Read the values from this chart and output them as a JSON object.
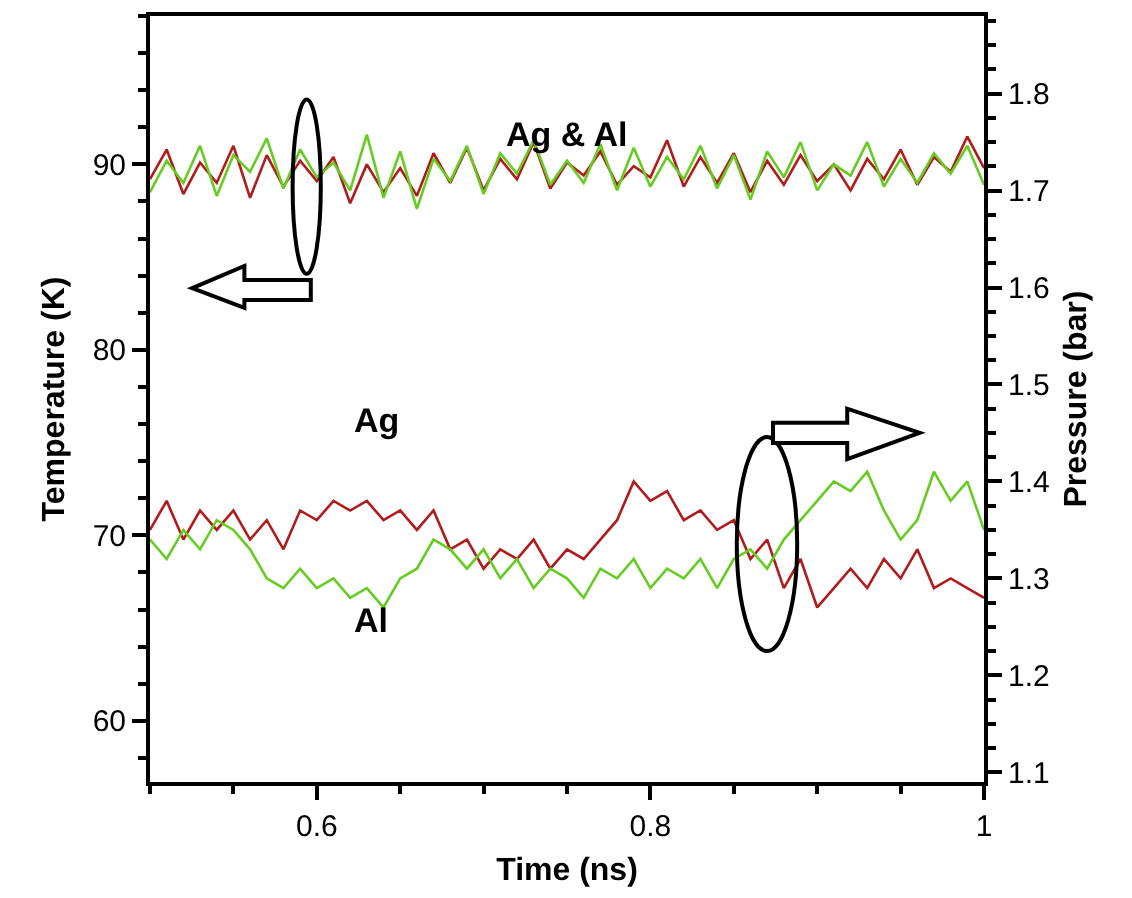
{
  "chart_data": {
    "type": "line",
    "xlabel": "Time (ns)",
    "ylabel": "Temperature (K)",
    "y2label": "Pressure (bar)",
    "x": [
      0.5,
      0.51,
      0.52,
      0.53,
      0.54,
      0.55,
      0.56,
      0.57,
      0.58,
      0.59,
      0.6,
      0.61,
      0.62,
      0.63,
      0.64,
      0.65,
      0.66,
      0.67,
      0.68,
      0.69,
      0.7,
      0.71,
      0.72,
      0.73,
      0.74,
      0.75,
      0.76,
      0.77,
      0.78,
      0.79,
      0.8,
      0.81,
      0.82,
      0.83,
      0.84,
      0.85,
      0.86,
      0.87,
      0.88,
      0.89,
      0.9,
      0.91,
      0.92,
      0.93,
      0.94,
      0.95,
      0.96,
      0.97,
      0.98,
      0.99,
      1.0
    ],
    "series": [
      {
        "color": "#b01c1c",
        "values": [
          89.2,
          90.8,
          88.4,
          90.1,
          89.0,
          91.0,
          88.2,
          90.5,
          88.8,
          90.2,
          89.1,
          90.4,
          87.9,
          90.0,
          88.5,
          89.8,
          88.3,
          90.6,
          89.0,
          90.9,
          88.6,
          90.3,
          89.2,
          91.2,
          88.7,
          90.1,
          89.4,
          90.7,
          88.9,
          89.9,
          89.3,
          91.3,
          88.8,
          90.4,
          89.0,
          90.6,
          88.5,
          90.2,
          88.9,
          90.5,
          89.1,
          90.0,
          88.6,
          90.3,
          89.2,
          90.8,
          88.9,
          90.4,
          89.6,
          91.5,
          89.8
        ]
      },
      {
        "color": "#66cc22",
        "values": [
          88.5,
          90.2,
          89.0,
          91.0,
          88.3,
          90.5,
          89.6,
          91.4,
          88.7,
          90.8,
          89.3,
          90.1,
          88.6,
          91.6,
          88.2,
          90.7,
          87.6,
          90.3,
          89.1,
          91.0,
          88.4,
          90.6,
          89.5,
          91.3,
          88.9,
          90.2,
          89.0,
          91.1,
          88.6,
          90.9,
          88.8,
          90.4,
          89.2,
          91.0,
          88.7,
          90.5,
          88.1,
          90.7,
          89.3,
          91.2,
          88.6,
          90.0,
          89.4,
          91.2,
          88.8,
          90.3,
          89.0,
          90.6,
          89.5,
          91.0,
          88.9
        ]
      },
      {
        "name": "Ag",
        "axis": "y2",
        "color": "#b01c1c",
        "values": [
          1.35,
          1.38,
          1.34,
          1.37,
          1.35,
          1.37,
          1.34,
          1.36,
          1.33,
          1.37,
          1.36,
          1.38,
          1.37,
          1.38,
          1.36,
          1.37,
          1.35,
          1.37,
          1.33,
          1.34,
          1.31,
          1.33,
          1.32,
          1.34,
          1.31,
          1.33,
          1.32,
          1.34,
          1.36,
          1.4,
          1.38,
          1.39,
          1.36,
          1.37,
          1.35,
          1.36,
          1.32,
          1.34,
          1.29,
          1.32,
          1.27,
          1.29,
          1.31,
          1.29,
          1.32,
          1.3,
          1.33,
          1.29,
          1.3,
          1.29,
          1.28
        ]
      },
      {
        "name": "Al",
        "axis": "y2",
        "color": "#66cc22",
        "values": [
          1.34,
          1.32,
          1.35,
          1.33,
          1.36,
          1.35,
          1.33,
          1.3,
          1.29,
          1.31,
          1.29,
          1.3,
          1.28,
          1.29,
          1.27,
          1.3,
          1.31,
          1.34,
          1.33,
          1.31,
          1.33,
          1.3,
          1.32,
          1.29,
          1.31,
          1.3,
          1.28,
          1.31,
          1.3,
          1.32,
          1.29,
          1.31,
          1.3,
          1.32,
          1.29,
          1.32,
          1.33,
          1.31,
          1.34,
          1.36,
          1.38,
          1.4,
          1.39,
          1.41,
          1.37,
          1.34,
          1.36,
          1.41,
          1.38,
          1.4,
          1.35
        ]
      }
    ],
    "annotations": [
      "Ag & Al"
    ],
    "xlim": [
      0.5,
      1.0
    ],
    "xticks": [
      0.6,
      0.8,
      1
    ],
    "ylim": [
      56.7,
      98
    ],
    "yticks": [
      60,
      70,
      80,
      90
    ],
    "y2lim": [
      1.09,
      1.88
    ],
    "y2ticks": [
      1.1,
      1.2,
      1.3,
      1.4,
      1.5,
      1.6,
      1.7,
      1.8
    ],
    "grid": false,
    "legend": false,
    "marker": "none",
    "line_style": "solid"
  }
}
